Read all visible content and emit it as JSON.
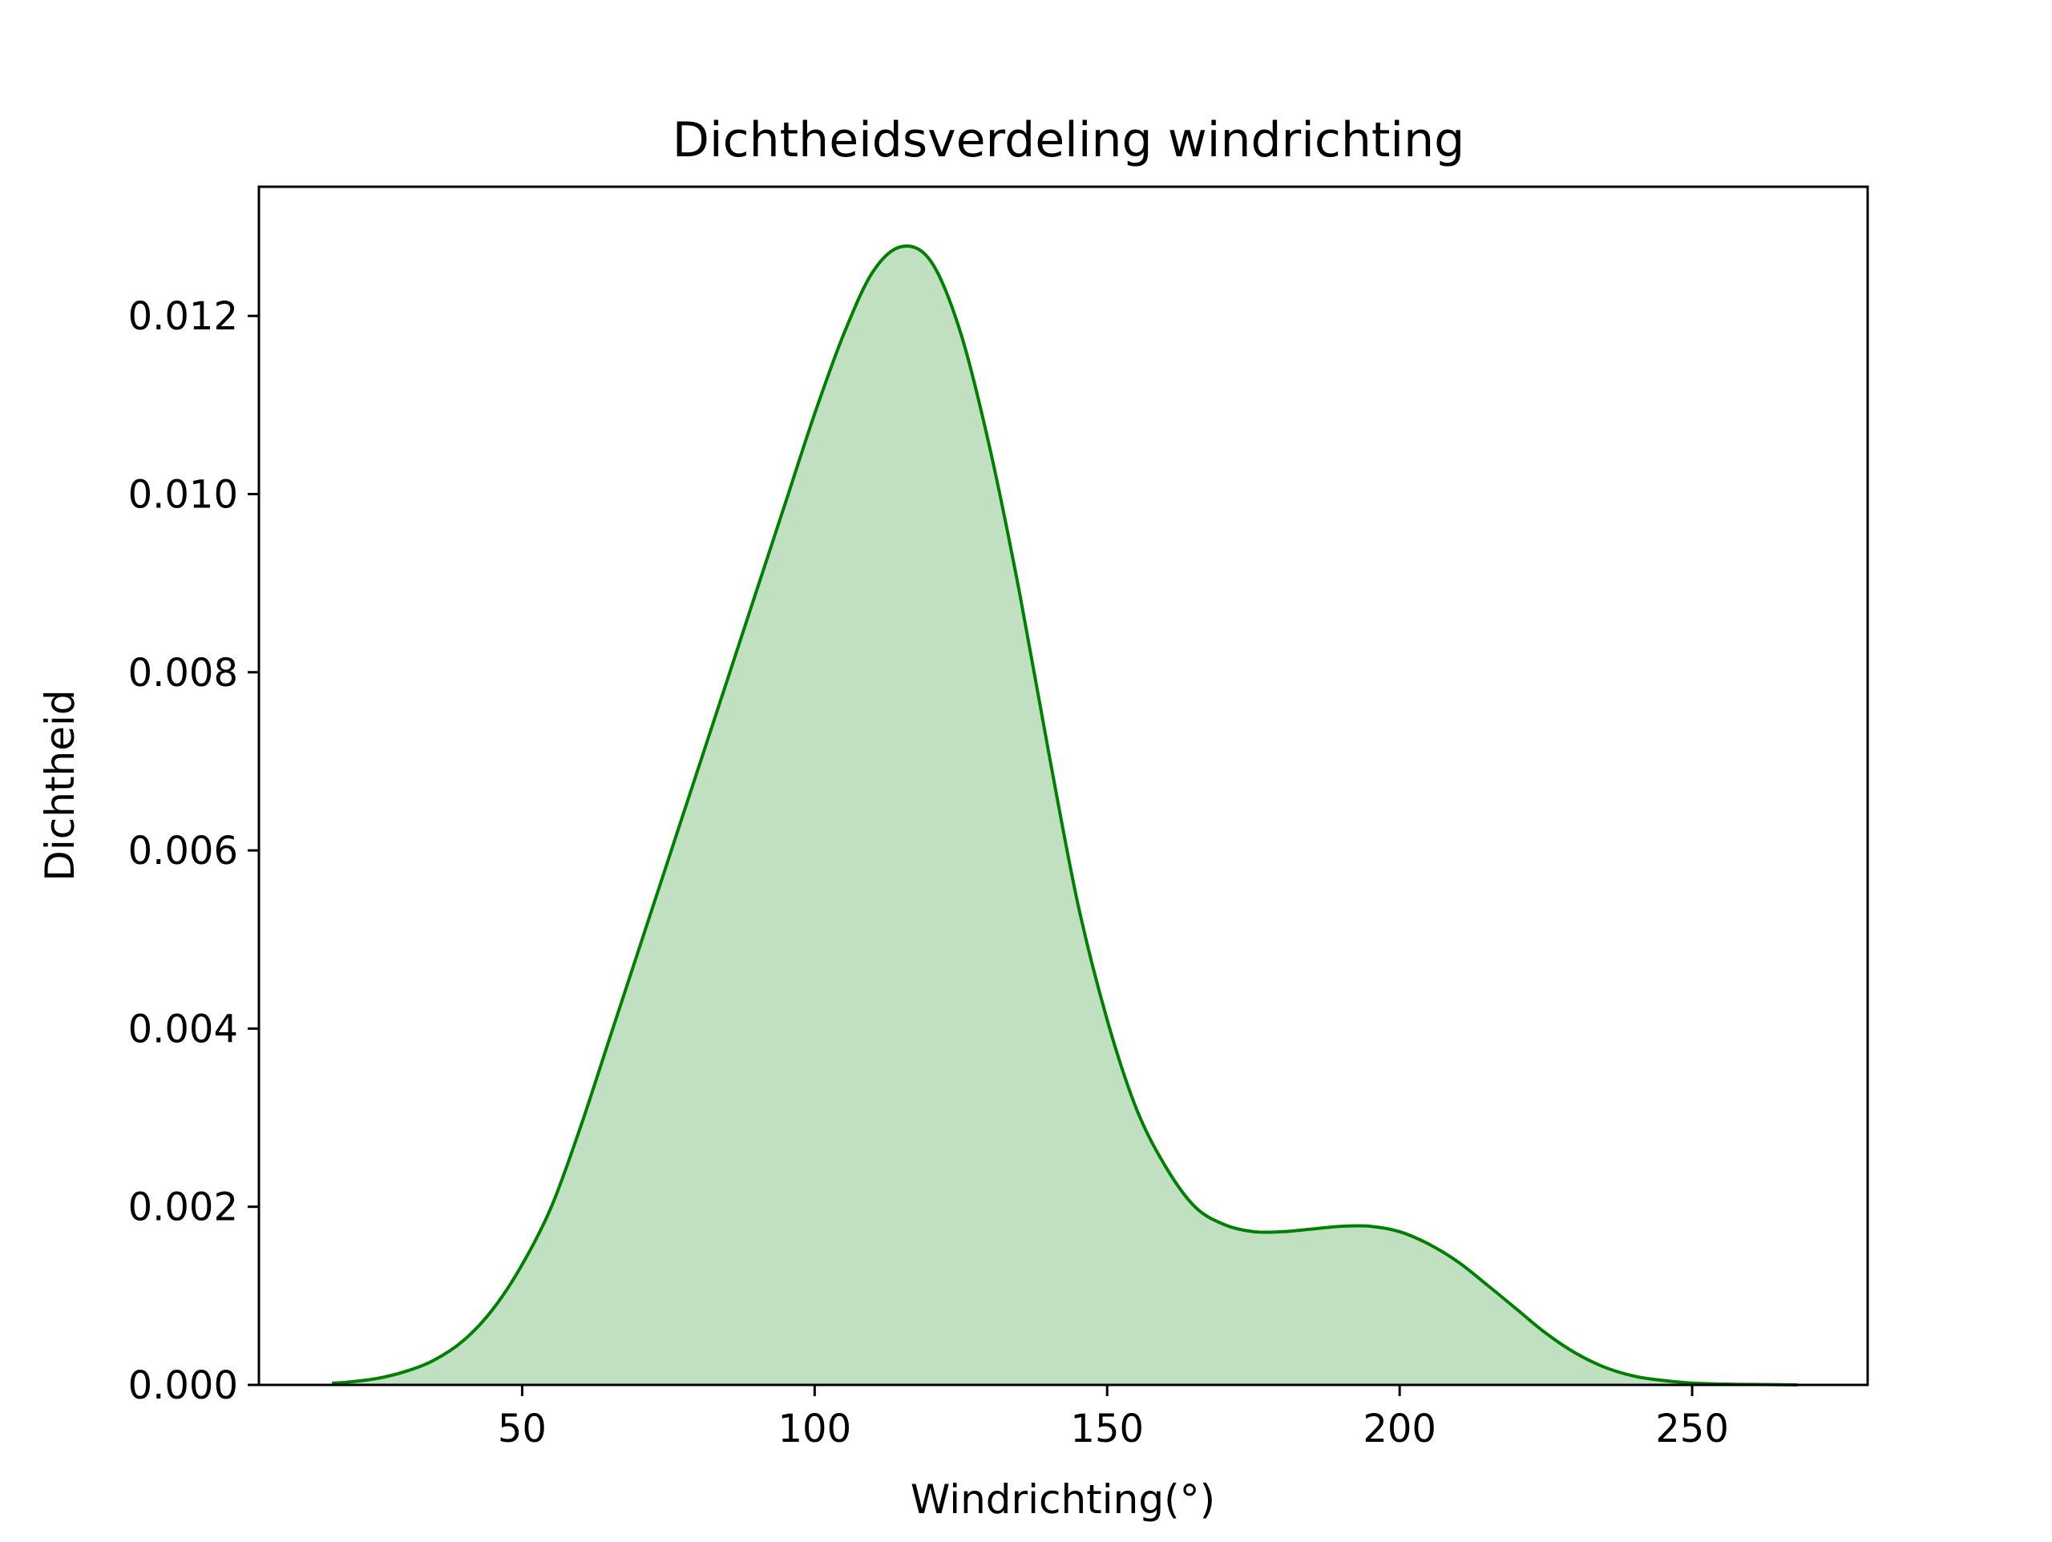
{
  "chart_data": {
    "type": "area",
    "title": "Dichtheidsverdeling windrichting",
    "xlabel": "Windrichting(°)",
    "ylabel": "Dichtheid",
    "xlim": [
      5,
      280
    ],
    "ylim": [
      0,
      0.01345
    ],
    "xticks": [
      50,
      100,
      150,
      200,
      250
    ],
    "yticks": [
      0.0,
      0.002,
      0.004,
      0.006,
      0.008,
      0.01,
      0.012
    ],
    "xtick_labels": [
      "50",
      "100",
      "150",
      "200",
      "250"
    ],
    "ytick_labels": [
      "0.000",
      "0.002",
      "0.004",
      "0.006",
      "0.008",
      "0.010",
      "0.012"
    ],
    "grid": false,
    "legend": "none",
    "series": [
      {
        "color": "#008000",
        "fill_color": "#c1e0c1",
        "x": [
          17.5,
          20,
          25,
          30,
          35,
          40,
          45,
          50,
          55,
          60,
          65,
          70,
          75,
          80,
          85,
          90,
          95,
          100,
          105,
          110,
          115,
          120,
          125,
          130,
          135,
          140,
          145,
          150,
          155,
          160,
          165,
          170,
          175,
          180,
          185,
          190,
          195,
          200,
          205,
          210,
          215,
          220,
          225,
          230,
          235,
          240,
          245,
          250,
          255,
          260,
          268
        ],
        "y": [
          2e-05,
          3e-05,
          7e-05,
          0.00015,
          0.00028,
          0.0005,
          0.00085,
          0.00135,
          0.002,
          0.0029,
          0.0039,
          0.0049,
          0.0059,
          0.0069,
          0.0079,
          0.0089,
          0.0099,
          0.0109,
          0.0118,
          0.0125,
          0.01278,
          0.0126,
          0.0118,
          0.0105,
          0.0089,
          0.0071,
          0.0054,
          0.0041,
          0.0031,
          0.00245,
          0.002,
          0.0018,
          0.00172,
          0.00172,
          0.00175,
          0.00178,
          0.00178,
          0.00172,
          0.00158,
          0.00138,
          0.00112,
          0.00085,
          0.00058,
          0.00036,
          0.0002,
          0.0001,
          5e-05,
          2e-05,
          1e-05,
          5e-06,
          0.0
        ]
      }
    ]
  }
}
